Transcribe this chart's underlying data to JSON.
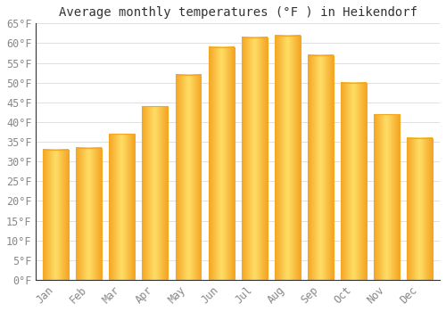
{
  "title": "Average monthly temperatures (°F ) in Heikendorf",
  "months": [
    "Jan",
    "Feb",
    "Mar",
    "Apr",
    "May",
    "Jun",
    "Jul",
    "Aug",
    "Sep",
    "Oct",
    "Nov",
    "Dec"
  ],
  "values": [
    33,
    33.5,
    37,
    44,
    52,
    59,
    61.5,
    62,
    57,
    50,
    42,
    36
  ],
  "bar_color_center": "#FFD966",
  "bar_color_edge": "#F5A623",
  "background_color": "#FFFFFF",
  "grid_color": "#E0E0E0",
  "ylim": [
    0,
    65
  ],
  "yticks": [
    0,
    5,
    10,
    15,
    20,
    25,
    30,
    35,
    40,
    45,
    50,
    55,
    60,
    65
  ],
  "title_fontsize": 10,
  "tick_fontsize": 8.5,
  "tick_font": "monospace",
  "bar_width": 0.78
}
